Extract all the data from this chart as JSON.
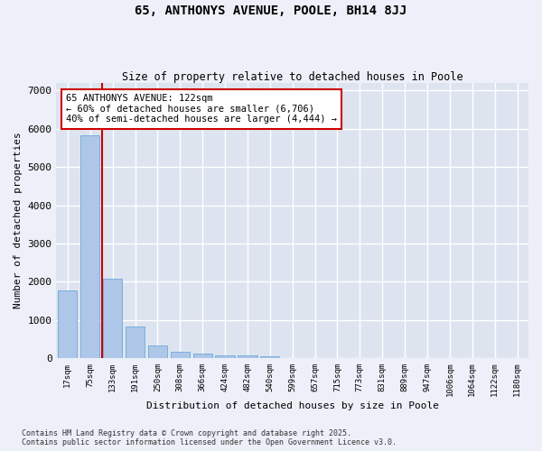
{
  "title1": "65, ANTHONYS AVENUE, POOLE, BH14 8JJ",
  "title2": "Size of property relative to detached houses in Poole",
  "xlabel": "Distribution of detached houses by size in Poole",
  "ylabel": "Number of detached properties",
  "categories": [
    "17sqm",
    "75sqm",
    "133sqm",
    "191sqm",
    "250sqm",
    "308sqm",
    "366sqm",
    "424sqm",
    "482sqm",
    "540sqm",
    "599sqm",
    "657sqm",
    "715sqm",
    "773sqm",
    "831sqm",
    "889sqm",
    "947sqm",
    "1006sqm",
    "1064sqm",
    "1122sqm",
    "1180sqm"
  ],
  "values": [
    1780,
    5820,
    2070,
    820,
    340,
    175,
    110,
    80,
    65,
    40,
    0,
    0,
    0,
    0,
    0,
    0,
    0,
    0,
    0,
    0,
    0
  ],
  "bar_color": "#aec6e8",
  "bar_edge_color": "#5a9fd4",
  "vline_color": "#cc0000",
  "annotation_text": "65 ANTHONYS AVENUE: 122sqm\n← 60% of detached houses are smaller (6,706)\n40% of semi-detached houses are larger (4,444) →",
  "annotation_box_color": "#cc0000",
  "ylim": [
    0,
    7200
  ],
  "yticks": [
    0,
    1000,
    2000,
    3000,
    4000,
    5000,
    6000,
    7000
  ],
  "fig_bg_color": "#edf0f8",
  "bg_color": "#dde4f0",
  "grid_color": "#ffffff",
  "footer1": "Contains HM Land Registry data © Crown copyright and database right 2025.",
  "footer2": "Contains public sector information licensed under the Open Government Licence v3.0."
}
